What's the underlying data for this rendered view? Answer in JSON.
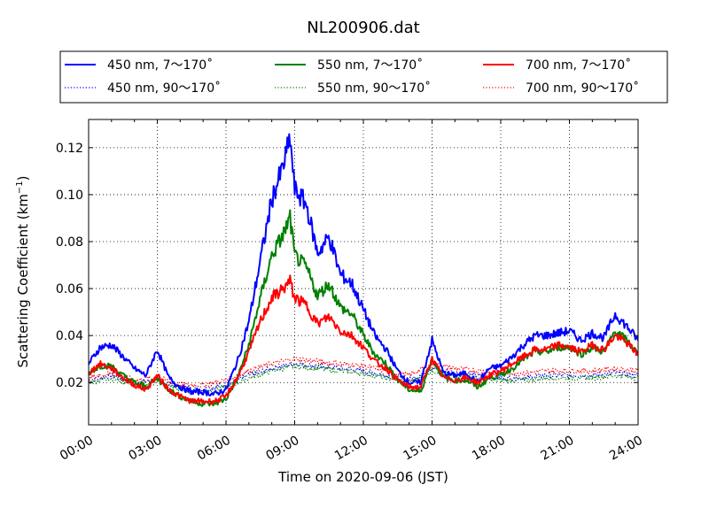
{
  "chart_data": {
    "type": "line",
    "title": "NL200906.dat",
    "xlabel": "Time on 2020-09-06 (JST)",
    "ylabel": "Scattering Coefficient (km",
    "ylabel_sup": "−1",
    "ylabel_close": ")",
    "xlim": [
      0,
      24
    ],
    "ylim": [
      0.002,
      0.132
    ],
    "x_ticks": [
      0,
      3,
      6,
      9,
      12,
      15,
      18,
      21,
      24
    ],
    "x_tick_labels": [
      "00:00",
      "03:00",
      "06:00",
      "09:00",
      "12:00",
      "15:00",
      "18:00",
      "21:00",
      "24:00"
    ],
    "y_ticks": [
      0.02,
      0.04,
      0.06,
      0.08,
      0.1,
      0.12
    ],
    "y_tick_labels": [
      "0.02",
      "0.04",
      "0.06",
      "0.08",
      "0.10",
      "0.12"
    ],
    "grid": true,
    "legend_position": "top",
    "series": [
      {
        "name": "450 nm, 7～170˚",
        "color": "#0000ff",
        "style": "solid",
        "x": [
          0,
          0.5,
          1,
          1.5,
          2,
          2.5,
          3,
          3.5,
          4,
          4.5,
          5,
          5.5,
          6,
          6.5,
          7,
          7.5,
          8,
          8.5,
          8.8,
          9,
          9.5,
          10,
          10.5,
          11,
          11.5,
          12,
          12.5,
          13,
          13.5,
          14,
          14.5,
          15,
          15.5,
          16,
          16.5,
          17,
          17.5,
          18,
          18.5,
          19,
          19.5,
          20,
          20.5,
          21,
          21.5,
          22,
          22.5,
          23,
          23.5,
          24
        ],
        "y": [
          0.028,
          0.035,
          0.036,
          0.031,
          0.026,
          0.023,
          0.034,
          0.022,
          0.018,
          0.016,
          0.016,
          0.015,
          0.017,
          0.029,
          0.046,
          0.072,
          0.098,
          0.112,
          0.124,
          0.102,
          0.096,
          0.075,
          0.082,
          0.066,
          0.062,
          0.051,
          0.04,
          0.034,
          0.025,
          0.02,
          0.02,
          0.038,
          0.024,
          0.023,
          0.024,
          0.02,
          0.026,
          0.027,
          0.031,
          0.036,
          0.04,
          0.04,
          0.041,
          0.042,
          0.038,
          0.041,
          0.039,
          0.049,
          0.044,
          0.038
        ]
      },
      {
        "name": "550 nm, 7～170˚",
        "color": "#008000",
        "style": "solid",
        "x": [
          0,
          0.5,
          1,
          1.5,
          2,
          2.5,
          3,
          3.5,
          4,
          4.5,
          5,
          5.5,
          6,
          6.5,
          7,
          7.5,
          8,
          8.5,
          8.8,
          9,
          9.5,
          10,
          10.5,
          11,
          11.5,
          12,
          12.5,
          13,
          13.5,
          14,
          14.5,
          15,
          15.5,
          16,
          16.5,
          17,
          17.5,
          18,
          18.5,
          19,
          19.5,
          20,
          20.5,
          21,
          21.5,
          22,
          22.5,
          23,
          23.5,
          24
        ],
        "y": [
          0.024,
          0.027,
          0.027,
          0.023,
          0.02,
          0.018,
          0.022,
          0.017,
          0.014,
          0.012,
          0.011,
          0.011,
          0.013,
          0.022,
          0.036,
          0.056,
          0.074,
          0.083,
          0.09,
          0.074,
          0.069,
          0.057,
          0.062,
          0.052,
          0.049,
          0.04,
          0.032,
          0.028,
          0.021,
          0.017,
          0.016,
          0.03,
          0.022,
          0.021,
          0.021,
          0.018,
          0.022,
          0.023,
          0.026,
          0.03,
          0.033,
          0.033,
          0.035,
          0.035,
          0.032,
          0.035,
          0.033,
          0.042,
          0.038,
          0.032
        ]
      },
      {
        "name": "700 nm, 7～170˚",
        "color": "#ff0000",
        "style": "solid",
        "x": [
          0,
          0.5,
          1,
          1.5,
          2,
          2.5,
          3,
          3.5,
          4,
          4.5,
          5,
          5.5,
          6,
          6.5,
          7,
          7.5,
          8,
          8.5,
          8.8,
          9,
          9.5,
          10,
          10.5,
          11,
          11.5,
          12,
          12.5,
          13,
          13.5,
          14,
          14.5,
          15,
          15.5,
          16,
          16.5,
          17,
          17.5,
          18,
          18.5,
          19,
          19.5,
          20,
          20.5,
          21,
          21.5,
          22,
          22.5,
          23,
          23.5,
          24
        ],
        "y": [
          0.024,
          0.028,
          0.026,
          0.022,
          0.019,
          0.017,
          0.023,
          0.017,
          0.014,
          0.012,
          0.012,
          0.012,
          0.014,
          0.022,
          0.033,
          0.046,
          0.056,
          0.06,
          0.063,
          0.056,
          0.053,
          0.045,
          0.048,
          0.042,
          0.04,
          0.035,
          0.029,
          0.026,
          0.021,
          0.018,
          0.018,
          0.03,
          0.022,
          0.021,
          0.022,
          0.02,
          0.023,
          0.025,
          0.028,
          0.031,
          0.034,
          0.034,
          0.036,
          0.035,
          0.033,
          0.036,
          0.034,
          0.04,
          0.037,
          0.032
        ]
      },
      {
        "name": "450 nm, 90～170˚",
        "color": "#0000ff",
        "style": "dotted",
        "x": [
          0,
          1,
          2,
          3,
          4,
          5,
          6,
          7,
          8,
          9,
          10,
          11,
          12,
          13,
          14,
          15,
          16,
          17,
          18,
          19,
          20,
          21,
          22,
          23,
          24
        ],
        "y": [
          0.021,
          0.023,
          0.02,
          0.021,
          0.018,
          0.017,
          0.019,
          0.023,
          0.026,
          0.028,
          0.027,
          0.026,
          0.025,
          0.023,
          0.021,
          0.026,
          0.024,
          0.023,
          0.022,
          0.022,
          0.023,
          0.023,
          0.023,
          0.024,
          0.023
        ]
      },
      {
        "name": "550 nm, 90～170˚",
        "color": "#008000",
        "style": "dotted",
        "x": [
          0,
          1,
          2,
          3,
          4,
          5,
          6,
          7,
          8,
          9,
          10,
          11,
          12,
          13,
          14,
          15,
          16,
          17,
          18,
          19,
          20,
          21,
          22,
          23,
          24
        ],
        "y": [
          0.02,
          0.022,
          0.019,
          0.02,
          0.017,
          0.016,
          0.018,
          0.022,
          0.025,
          0.027,
          0.026,
          0.025,
          0.024,
          0.022,
          0.02,
          0.025,
          0.023,
          0.022,
          0.021,
          0.021,
          0.022,
          0.022,
          0.022,
          0.023,
          0.022
        ]
      },
      {
        "name": "700 nm, 90～170˚",
        "color": "#ff0000",
        "style": "dotted",
        "x": [
          0,
          1,
          2,
          3,
          4,
          5,
          6,
          7,
          8,
          9,
          10,
          11,
          12,
          13,
          14,
          15,
          16,
          17,
          18,
          19,
          20,
          21,
          22,
          23,
          24
        ],
        "y": [
          0.022,
          0.024,
          0.021,
          0.022,
          0.019,
          0.019,
          0.021,
          0.025,
          0.028,
          0.03,
          0.029,
          0.028,
          0.027,
          0.025,
          0.023,
          0.028,
          0.026,
          0.025,
          0.024,
          0.024,
          0.025,
          0.025,
          0.025,
          0.026,
          0.025
        ]
      }
    ]
  }
}
